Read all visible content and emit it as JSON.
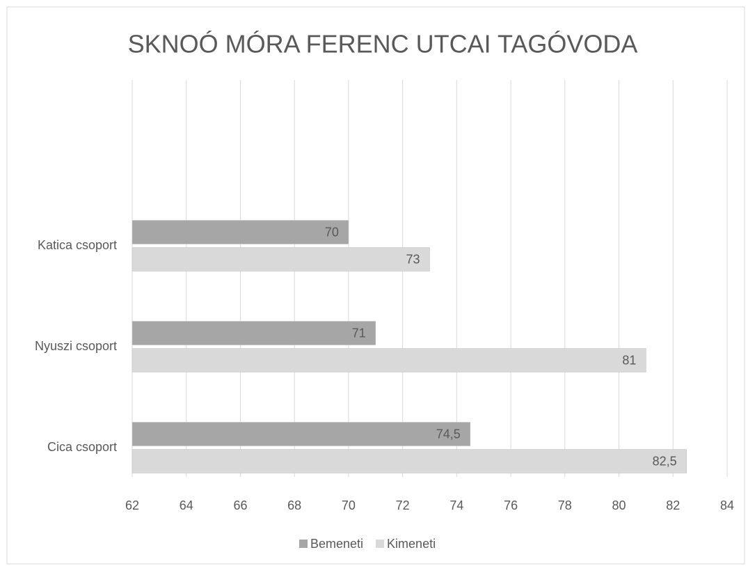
{
  "chart_data": {
    "type": "barh",
    "title": "SKNOÓ MÓRA FERENC UTCAI TAGÓVODA",
    "categories": [
      "Cica csoport",
      "Nyuszi csoport",
      "Katica csoport"
    ],
    "series": [
      {
        "name": "Bemeneti",
        "color": "#a6a6a6",
        "values": [
          74.5,
          71,
          70
        ],
        "value_labels": [
          "74,5",
          "71",
          "70"
        ]
      },
      {
        "name": "Kimeneti",
        "color": "#d9d9d9",
        "values": [
          82.5,
          81,
          73
        ],
        "value_labels": [
          "82,5",
          "81",
          "73"
        ]
      }
    ],
    "xlim": [
      62,
      84
    ],
    "xticks": [
      62,
      64,
      66,
      68,
      70,
      72,
      74,
      76,
      78,
      80,
      82,
      84
    ],
    "grid": true,
    "legend": "bottom"
  }
}
